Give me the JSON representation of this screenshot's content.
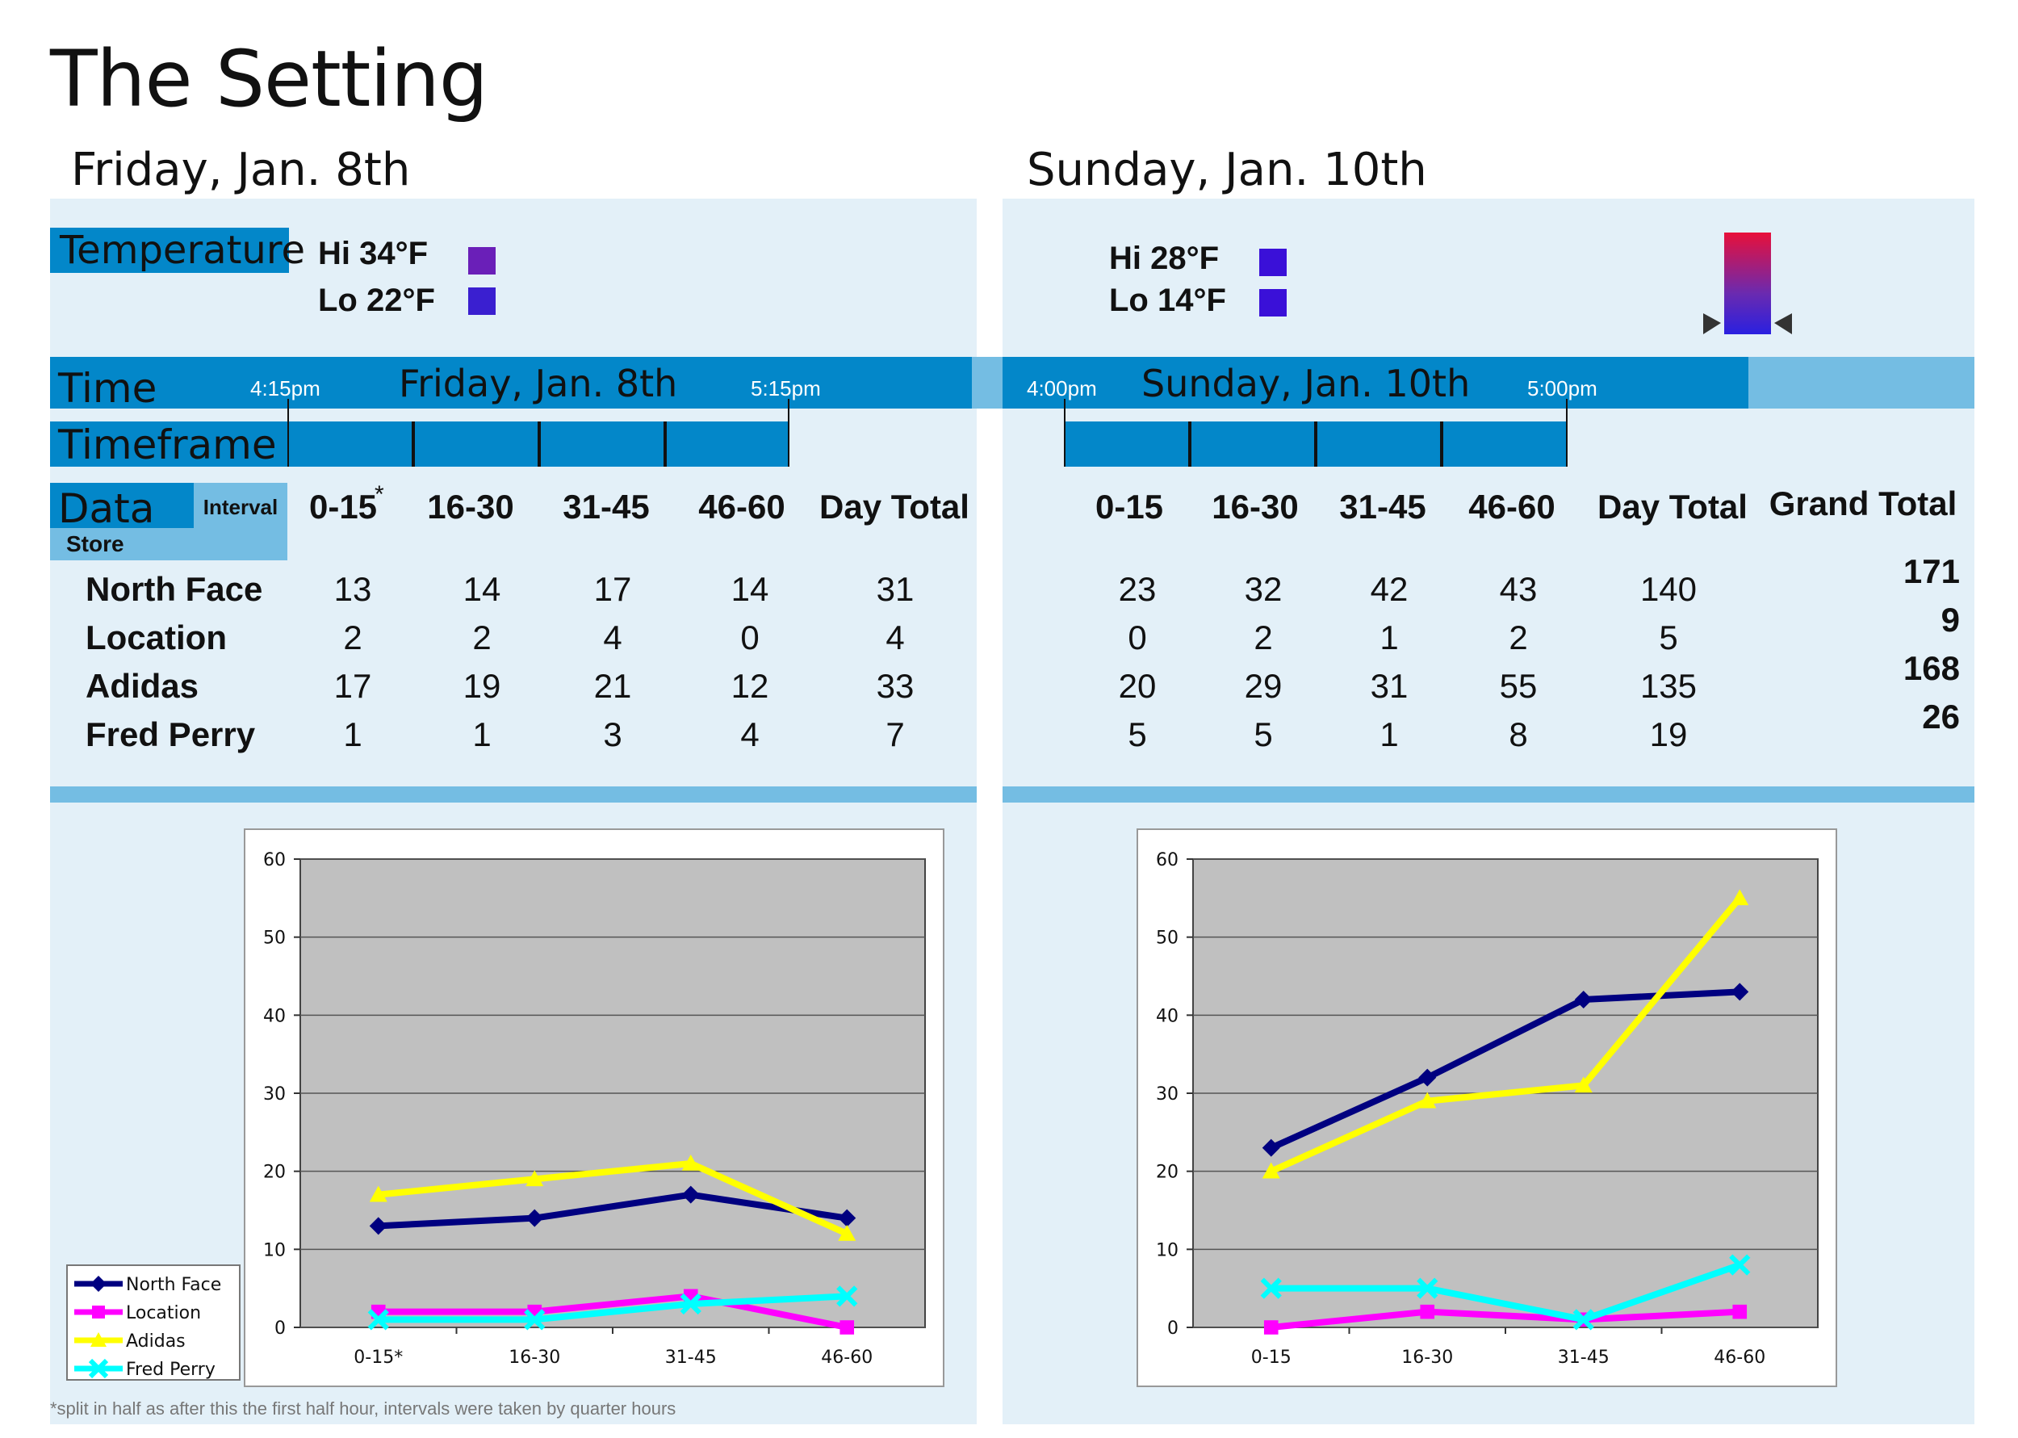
{
  "title": "The Setting",
  "friday": {
    "heading": "Friday, Jan. 8th",
    "temperature_label": "Temperature",
    "hi": "Hi  34°F",
    "lo": "Lo  22°F",
    "hi_color": "#6a1fb8",
    "lo_color": "#3a1fd0",
    "time_label": "Time",
    "time_start": "4:15pm",
    "time_title": "Friday, Jan. 8th",
    "time_end": "5:15pm",
    "timeframe_label": "Timeframe",
    "data_label": "Data",
    "interval_label": "Interval",
    "store_label": "Store",
    "headers": [
      "0-15",
      "16-30",
      "31-45",
      "46-60",
      "Day Total"
    ],
    "asterisk": "*",
    "rows": [
      {
        "store": "North Face",
        "values": [
          "13",
          "14",
          "17",
          "14",
          "31"
        ]
      },
      {
        "store": "Location",
        "values": [
          "2",
          "2",
          "4",
          "0",
          "4"
        ]
      },
      {
        "store": "Adidas",
        "values": [
          "17",
          "19",
          "21",
          "12",
          "33"
        ]
      },
      {
        "store": "Fred Perry",
        "values": [
          "1",
          "1",
          "3",
          "4",
          "7"
        ]
      }
    ],
    "footnote": "*split in half as after this the first half hour, intervals were taken by quarter hours"
  },
  "sunday": {
    "heading": "Sunday, Jan. 10th",
    "hi": "Hi  28°F",
    "lo": "Lo  14°F",
    "hi_color": "#3a10d8",
    "lo_color": "#3a10d8",
    "time_start": "4:00pm",
    "time_title": "Sunday, Jan. 10th",
    "time_end": "5:00pm",
    "headers": [
      "0-15",
      "16-30",
      "31-45",
      "46-60",
      "Day Total"
    ],
    "grand_total_label": "Grand Total",
    "rows": [
      {
        "store": "North Face",
        "values": [
          "23",
          "32",
          "42",
          "43",
          "140"
        ]
      },
      {
        "store": "Location",
        "values": [
          "0",
          "2",
          "1",
          "2",
          "5"
        ]
      },
      {
        "store": "Adidas",
        "values": [
          "20",
          "29",
          "31",
          "55",
          "135"
        ]
      },
      {
        "store": "Fred Perry",
        "values": [
          "5",
          "5",
          "1",
          "8",
          "19"
        ]
      }
    ],
    "grand_totals": [
      "171",
      "9",
      "168",
      "26"
    ]
  },
  "colors": {
    "panel": "#e3f0f8",
    "bar": "#0387c9",
    "light_bar": "#74bde3",
    "plot_bg": "#c0c0c0",
    "north_face": "#000080",
    "location": "#ff00ff",
    "adidas": "#ffff00",
    "fred_perry": "#00ffff"
  },
  "chart_data": [
    {
      "type": "line",
      "categories": [
        "0-15*",
        "16-30",
        "31-45",
        "46-60"
      ],
      "ylim": [
        0,
        60
      ],
      "yticks": [
        0,
        10,
        20,
        30,
        40,
        50,
        60
      ],
      "grid": true,
      "legend": "bottom-left",
      "series": [
        {
          "name": "North Face",
          "values": [
            13,
            14,
            17,
            14
          ],
          "color": "#000080",
          "marker": "diamond"
        },
        {
          "name": "Location",
          "values": [
            2,
            2,
            4,
            0
          ],
          "color": "#ff00ff",
          "marker": "square"
        },
        {
          "name": "Adidas",
          "values": [
            17,
            19,
            21,
            12
          ],
          "color": "#ffff00",
          "marker": "triangle"
        },
        {
          "name": "Fred Perry",
          "values": [
            1,
            1,
            3,
            4
          ],
          "color": "#00ffff",
          "marker": "x"
        }
      ]
    },
    {
      "type": "line",
      "categories": [
        "0-15",
        "16-30",
        "31-45",
        "46-60"
      ],
      "ylim": [
        0,
        60
      ],
      "yticks": [
        0,
        10,
        20,
        30,
        40,
        50,
        60
      ],
      "grid": true,
      "series": [
        {
          "name": "North Face",
          "values": [
            23,
            32,
            42,
            43
          ],
          "color": "#000080",
          "marker": "diamond"
        },
        {
          "name": "Location",
          "values": [
            0,
            2,
            1,
            2
          ],
          "color": "#ff00ff",
          "marker": "square"
        },
        {
          "name": "Adidas",
          "values": [
            20,
            29,
            31,
            55
          ],
          "color": "#ffff00",
          "marker": "triangle"
        },
        {
          "name": "Fred Perry",
          "values": [
            5,
            5,
            1,
            8
          ],
          "color": "#00ffff",
          "marker": "x"
        }
      ]
    }
  ]
}
